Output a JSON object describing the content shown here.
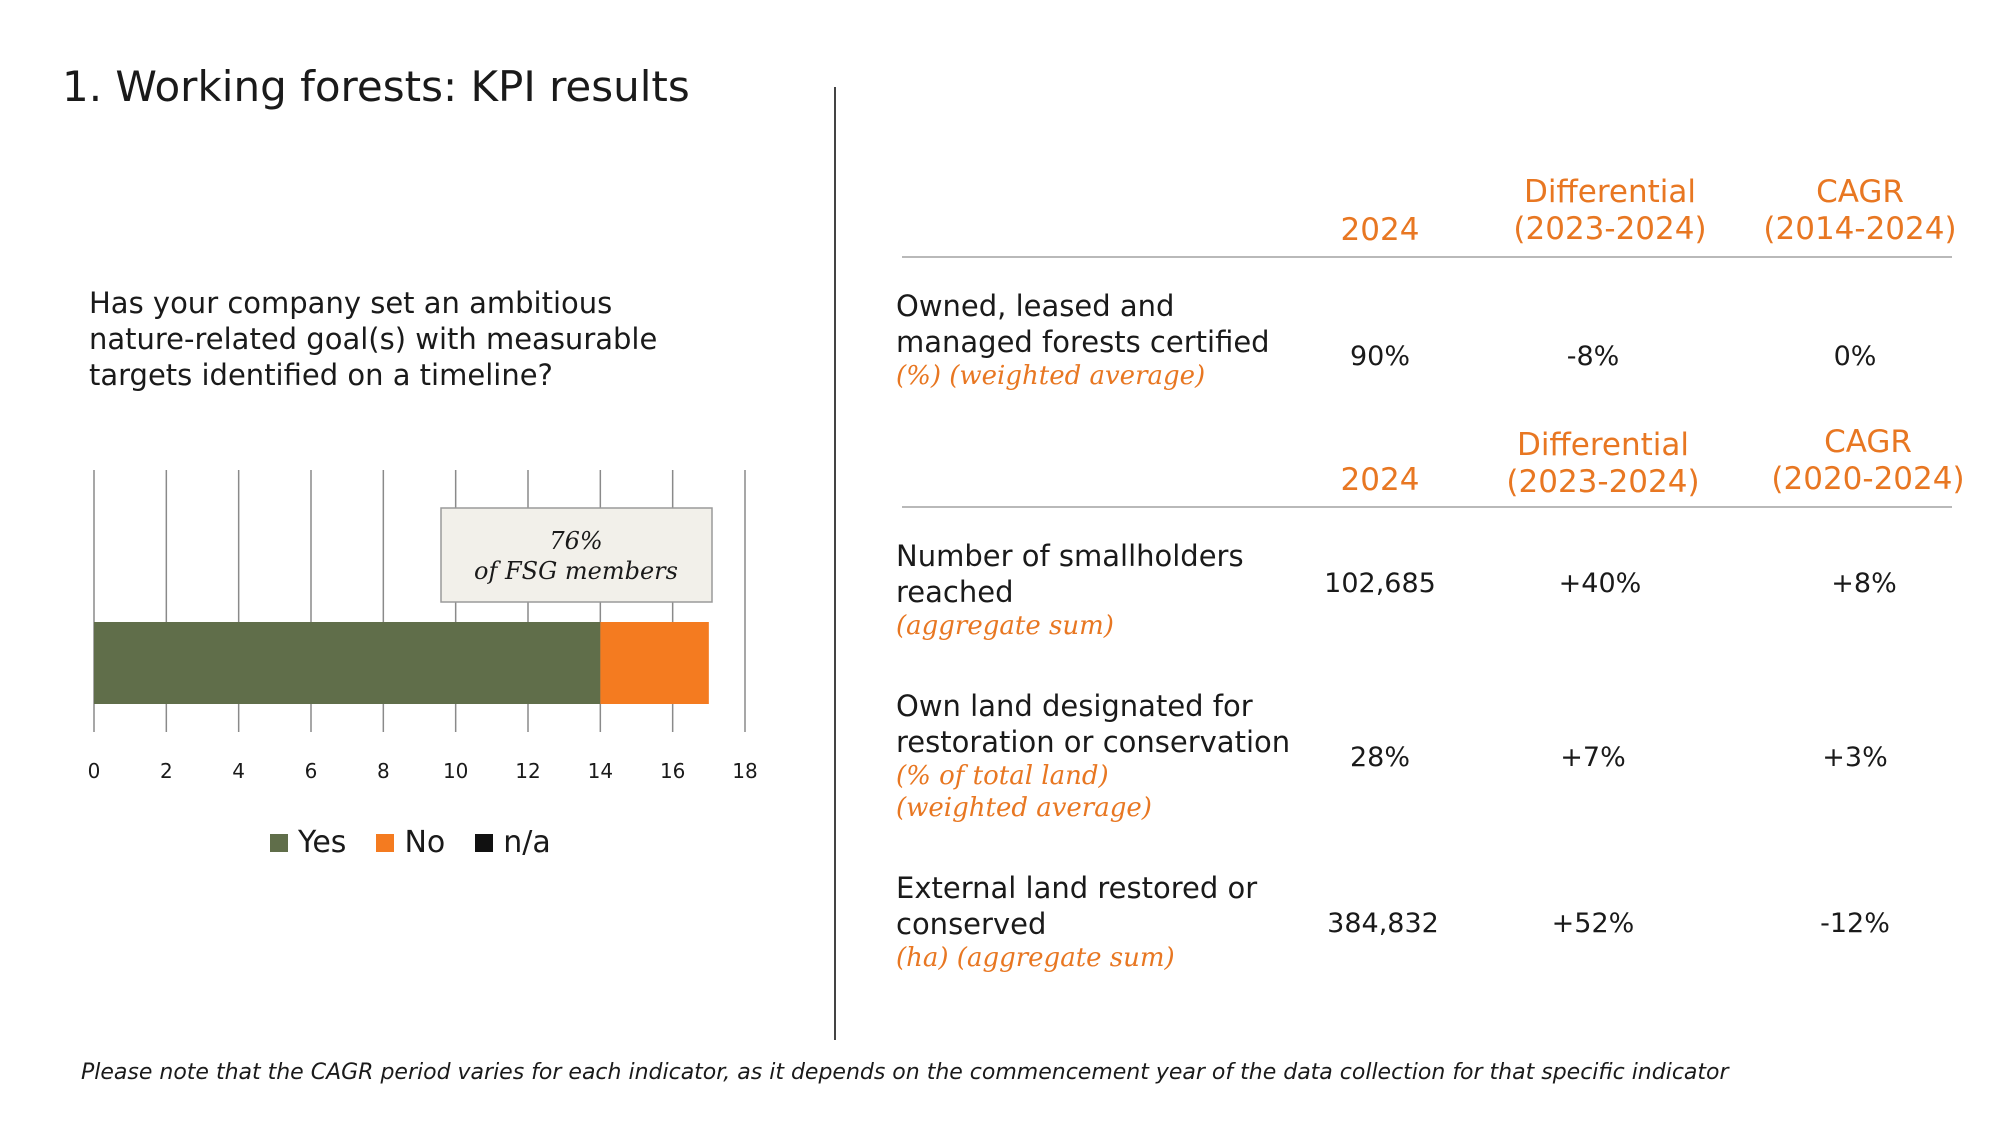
{
  "title": "1. Working forests: KPI results",
  "question": "Has your company set an ambitious nature-related goal(s) with measurable targets identified on a timeline?",
  "callout": {
    "line1": "76%",
    "line2": "of FSG members"
  },
  "chart_data": {
    "type": "bar",
    "orientation": "horizontal",
    "stacked": true,
    "categories": [
      ""
    ],
    "series": [
      {
        "name": "Yes",
        "values": [
          14
        ],
        "color": "#606e4a"
      },
      {
        "name": "No",
        "values": [
          3
        ],
        "color": "#f47b20"
      },
      {
        "name": "n/a",
        "values": [
          0
        ],
        "color": "#111111"
      }
    ],
    "xlim": [
      0,
      18
    ],
    "xticks": [
      0,
      2,
      4,
      6,
      8,
      10,
      12,
      14,
      16,
      18
    ],
    "grid": true,
    "legend": "bottom"
  },
  "legend": [
    {
      "label": "Yes",
      "color": "#606e4a"
    },
    {
      "label": "No",
      "color": "#f47b20"
    },
    {
      "label": "n/a",
      "color": "#111111"
    }
  ],
  "table1": {
    "headers": {
      "c1": "2024",
      "c2_line1": "Differential",
      "c2_line2": "(2023-2024)",
      "c3_line1": "CAGR",
      "c3_line2": "(2014-2024)"
    },
    "row": {
      "label": "Owned, leased and managed forests certified",
      "sub": "(%) (weighted average)",
      "v2024": "90%",
      "diff": "-8%",
      "cagr": "0%"
    }
  },
  "table2": {
    "headers": {
      "c1": "2024",
      "c2_line1": "Differential",
      "c2_line2": "(2023-2024)",
      "c3_line1": "CAGR",
      "c3_line2": "(2020-2024)"
    },
    "rows": [
      {
        "label": "Number of smallholders reached",
        "sub": "(aggregate sum)",
        "v2024": "102,685",
        "diff": "+40%",
        "cagr": "+8%"
      },
      {
        "label": "Own land designated for restoration or conservation",
        "sub": "(% of total land)",
        "sub2": "(weighted average)",
        "v2024": "28%",
        "diff": "+7%",
        "cagr": "+3%"
      },
      {
        "label": "External land restored or conserved",
        "sub": "(ha) (aggregate sum)",
        "v2024": "384,832",
        "diff": "+52%",
        "cagr": "-12%"
      }
    ]
  },
  "footnote": "Please note that the CAGR period varies for each indicator, as it depends on the commencement year of the data collection for that specific indicator"
}
